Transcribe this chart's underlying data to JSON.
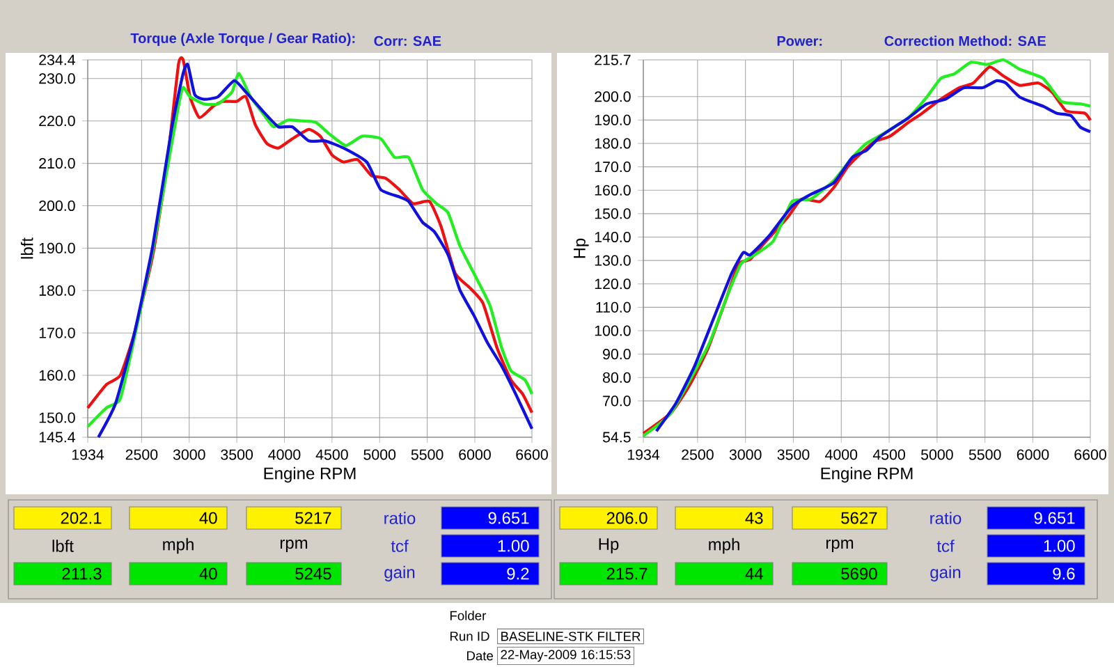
{
  "chart_data": [
    {
      "type": "line",
      "title": "Torque (Axle Torque / Gear Ratio):",
      "subtitle": "Corr: SAE",
      "xlabel": "Engine RPM",
      "ylabel": "lbft",
      "xlim": [
        1934,
        6600
      ],
      "xticks": [
        1934,
        2500,
        3000,
        3500,
        4000,
        4500,
        5000,
        5500,
        6000,
        6600
      ],
      "ylim": [
        145.4,
        234.4
      ],
      "yticks": [
        145.4,
        {
          "value": 150,
          "label": "150.0"
        },
        {
          "value": 160,
          "label": "160.0"
        },
        {
          "value": 170,
          "label": "170.0"
        },
        {
          "value": 180,
          "label": "180.0"
        },
        {
          "value": 190,
          "label": "190.0"
        },
        {
          "value": 200,
          "label": "200.0"
        },
        {
          "value": 210,
          "label": "210.0"
        },
        {
          "value": 220,
          "label": "220.0"
        },
        {
          "value": 230,
          "label": "230.0"
        },
        234.4
      ],
      "grid": true,
      "line_style": "solid",
      "series": [
        {
          "color": "#ee1111",
          "x": [
            1934,
            2129,
            2276,
            2423,
            2618,
            2765,
            2887,
            2936,
            3009,
            3107,
            3253,
            3351,
            3498,
            3596,
            3694,
            3815,
            3937,
            4084,
            4255,
            4377,
            4499,
            4621,
            4768,
            4914,
            5060,
            5207,
            5353,
            5524,
            5647,
            5793,
            5940,
            6086,
            6233,
            6380,
            6502,
            6600
          ],
          "values": [
            152.3,
            157.8,
            160,
            169.8,
            188.4,
            209.3,
            233.3,
            234.4,
            225.7,
            220.8,
            223.5,
            224.6,
            224.6,
            225.7,
            219.1,
            214.7,
            213.6,
            215.8,
            218,
            216.4,
            212,
            210.3,
            210.9,
            207.1,
            206.5,
            203.8,
            200.5,
            201,
            195,
            184.1,
            180.8,
            177,
            166.5,
            158.9,
            155.6,
            151.2
          ]
        },
        {
          "color": "#22ee22",
          "x": [
            1934,
            2129,
            2276,
            2423,
            2618,
            2765,
            2887,
            2936,
            3009,
            3156,
            3302,
            3449,
            3522,
            3644,
            3790,
            3888,
            4035,
            4181,
            4328,
            4474,
            4645,
            4817,
            5012,
            5158,
            5305,
            5451,
            5598,
            5720,
            5842,
            5989,
            6160,
            6282,
            6380,
            6527,
            6600
          ],
          "values": [
            147.9,
            152.3,
            154.5,
            168.7,
            189.5,
            208.2,
            223.5,
            227.9,
            225.7,
            224,
            224,
            226.8,
            231.2,
            225.7,
            221.3,
            218.6,
            220.2,
            220,
            219.7,
            216.9,
            214.2,
            216.4,
            215.8,
            211.4,
            211.4,
            203.8,
            200.5,
            198.3,
            190.6,
            184.1,
            176.4,
            166.5,
            161.1,
            158.9,
            155.6
          ]
        },
        {
          "color": "#1111dd",
          "x": [
            2046,
            2227,
            2423,
            2618,
            2814,
            2936,
            2985,
            3058,
            3156,
            3302,
            3473,
            3596,
            3790,
            3937,
            4084,
            4255,
            4426,
            4621,
            4865,
            5012,
            5207,
            5305,
            5451,
            5574,
            5720,
            5842,
            5989,
            6135,
            6282,
            6429,
            6600
          ],
          "values": [
            145.4,
            153.4,
            169.8,
            190.6,
            218,
            231.2,
            233.3,
            226.2,
            225.1,
            225.7,
            229.5,
            226.8,
            221.9,
            218.6,
            218.6,
            215.3,
            215.3,
            213.6,
            210.3,
            203.8,
            202.1,
            201,
            196.1,
            193.9,
            188.4,
            180.2,
            174.2,
            167.6,
            162.2,
            155.6,
            147.4
          ]
        }
      ]
    },
    {
      "type": "line",
      "title": "Power:",
      "subtitle": "Correction Method: SAE",
      "xlabel": "Engine RPM",
      "ylabel": "Hp",
      "xlim": [
        1934,
        6600
      ],
      "xticks": [
        1934,
        2500,
        3000,
        3500,
        4000,
        4500,
        5000,
        5500,
        6000,
        6600
      ],
      "ylim": [
        54.5,
        215.7
      ],
      "yticks": [
        54.5,
        {
          "value": 70,
          "label": "70.0"
        },
        {
          "value": 80,
          "label": "80.0"
        },
        {
          "value": 90,
          "label": "90.0"
        },
        {
          "value": 100,
          "label": "100.0"
        },
        {
          "value": 110,
          "label": "110.0"
        },
        {
          "value": 120,
          "label": "120.0"
        },
        {
          "value": 130,
          "label": "130.0"
        },
        {
          "value": 140,
          "label": "140.0"
        },
        {
          "value": 150,
          "label": "150.0"
        },
        {
          "value": 160,
          "label": "160.0"
        },
        {
          "value": 170,
          "label": "170.0"
        },
        {
          "value": 180,
          "label": "180.0"
        },
        {
          "value": 190,
          "label": "190.0"
        },
        {
          "value": 200,
          "label": "200.0"
        },
        215.7
      ],
      "grid": true,
      "line_style": "solid",
      "series": [
        {
          "color": "#ee1111",
          "x": [
            1934,
            2225,
            2419,
            2613,
            2807,
            2928,
            3050,
            3195,
            3438,
            3583,
            3777,
            3923,
            4068,
            4238,
            4359,
            4505,
            4699,
            4844,
            5039,
            5233,
            5378,
            5548,
            5694,
            5863,
            6057,
            6203,
            6348,
            6543,
            6600
          ],
          "values": [
            56.1,
            65,
            76.9,
            92.8,
            114.6,
            128.5,
            130.5,
            137.4,
            148.3,
            156.2,
            155.2,
            161.2,
            170.1,
            177,
            181,
            183,
            188.9,
            192.9,
            198.9,
            203.8,
            205.8,
            212.7,
            208.8,
            204.8,
            205.8,
            201.8,
            193.9,
            192.9,
            189.9
          ]
        },
        {
          "color": "#22ee22",
          "x": [
            1934,
            2225,
            2613,
            2807,
            2953,
            3098,
            3292,
            3486,
            3680,
            3923,
            4117,
            4262,
            4432,
            4699,
            4893,
            5039,
            5184,
            5354,
            5524,
            5694,
            5863,
            6106,
            6300,
            6494,
            6600
          ],
          "values": [
            55.1,
            65,
            93.8,
            114.6,
            128.5,
            132.4,
            138.4,
            155.2,
            156.2,
            164.2,
            174.1,
            180,
            184,
            190.9,
            199.8,
            207.8,
            209.8,
            214.7,
            213.7,
            215.7,
            211.7,
            207.8,
            197.9,
            196.9,
            195.9
          ]
        },
        {
          "color": "#1111dd",
          "x": [
            2070,
            2274,
            2468,
            2662,
            2856,
            2977,
            3050,
            3244,
            3486,
            3680,
            3923,
            4117,
            4262,
            4408,
            4699,
            4893,
            5087,
            5281,
            5475,
            5621,
            5718,
            5863,
            6106,
            6251,
            6397,
            6494,
            6600
          ],
          "values": [
            57.1,
            69,
            84.8,
            104.7,
            124.5,
            133.4,
            132.4,
            140.4,
            153.2,
            158.2,
            163.2,
            174.1,
            177,
            183,
            190.9,
            196.9,
            198.9,
            203.8,
            203.8,
            206.8,
            205.8,
            199.8,
            195.9,
            192.9,
            191.9,
            187,
            185
          ]
        }
      ]
    },
    {
      "type": "other",
      "annotations": [
        "202.1",
        "40",
        "5217",
        "ratio",
        "9.651",
        "lbft",
        "mph",
        "rpm",
        "tcf",
        "1.00",
        "211.3",
        "40",
        "5245",
        "gain",
        "9.2"
      ]
    },
    {
      "type": "other",
      "annotations": [
        "206.0",
        "43",
        "5627",
        "ratio",
        "9.651",
        "Hp",
        "mph",
        "rpm",
        "tcf",
        "1.00",
        "215.7",
        "44",
        "5690",
        "gain",
        "9.6"
      ]
    },
    {
      "type": "other",
      "annotations": [
        "Folder",
        "Run ID",
        "BASELINE-STK FILTER",
        "Date",
        "22-May-2009 16:15:53"
      ]
    }
  ]
}
